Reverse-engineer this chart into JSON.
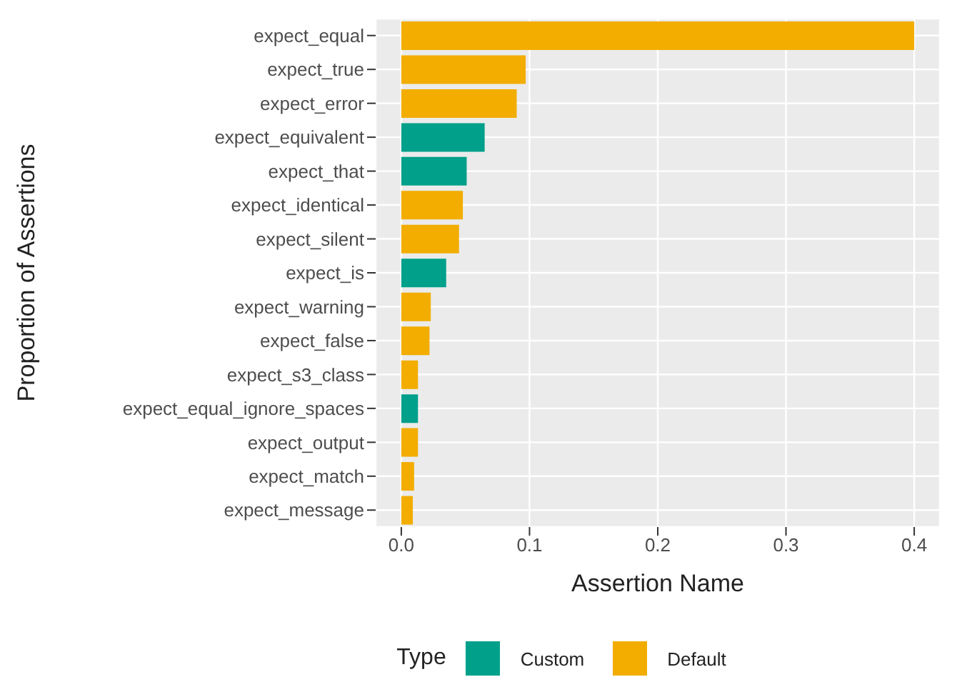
{
  "chart_data": {
    "type": "bar",
    "orientation": "horizontal",
    "stacked": true,
    "xlabel": "Assertion Name",
    "ylabel": "Proportion of Assertions",
    "legend_title": "Type",
    "legend": "bottom",
    "grid": true,
    "categories": [
      "expect_equal",
      "expect_true",
      "expect_error",
      "expect_equivalent",
      "expect_that",
      "expect_identical",
      "expect_silent",
      "expect_is",
      "expect_warning",
      "expect_false",
      "expect_s3_class",
      "expect_equal_ignore_spaces",
      "expect_output",
      "expect_match",
      "expect_message"
    ],
    "series": [
      {
        "name": "Custom",
        "color": "#00a08a",
        "values": [
          null,
          null,
          null,
          0.065,
          0.051,
          null,
          null,
          0.035,
          null,
          null,
          null,
          0.013,
          null,
          null,
          null
        ]
      },
      {
        "name": "Default",
        "color": "#f2ad00",
        "values": [
          0.4,
          0.097,
          0.09,
          null,
          null,
          0.048,
          0.045,
          null,
          0.023,
          0.022,
          0.013,
          null,
          0.013,
          0.01,
          0.009
        ]
      }
    ],
    "xlim": [
      -0.02,
      0.42
    ],
    "xticks": [
      {
        "value": 0,
        "label": "0.0"
      },
      0.1,
      0.2,
      0.3,
      0.4
    ]
  }
}
